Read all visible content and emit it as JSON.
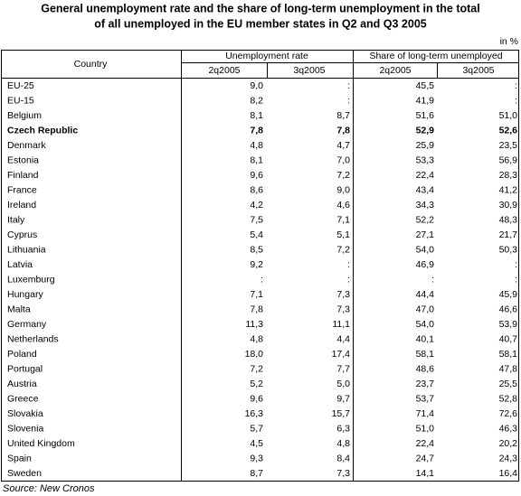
{
  "title": [
    "General unemployment rate and the share of long-term unemployment in the total",
    "of all unemployed in the EU member states in Q2 and Q3 2005"
  ],
  "unit": "in %",
  "table": {
    "header": {
      "country": "Country",
      "groups": [
        "Unemployment rate",
        "Share of long-term unemployed"
      ],
      "periods": [
        "2q2005",
        "3q2005",
        "2q2005",
        "3q2005"
      ]
    },
    "highlighted_row": 3,
    "rows": [
      [
        "EU-25",
        "9,0",
        ":",
        "45,5",
        ":"
      ],
      [
        "EU-15",
        "8,2",
        ":",
        "41,9",
        ":"
      ],
      [
        "Belgium",
        "8,1",
        "8,7",
        "51,6",
        "51,0"
      ],
      [
        "Czech Republic",
        "7,8",
        "7,8",
        "52,9",
        "52,6"
      ],
      [
        "Denmark",
        "4,8",
        "4,7",
        "25,9",
        "23,5"
      ],
      [
        "Estonia",
        "8,1",
        "7,0",
        "53,3",
        "56,9"
      ],
      [
        "Finland",
        "9,6",
        "7,2",
        "22,4",
        "28,3"
      ],
      [
        "France",
        "8,6",
        "9,0",
        "43,4",
        "41,2"
      ],
      [
        "Ireland",
        "4,2",
        "4,6",
        "34,3",
        "30,9"
      ],
      [
        "Italy",
        "7,5",
        "7,1",
        "52,2",
        "48,3"
      ],
      [
        "Cyprus",
        "5,4",
        "5,1",
        "27,1",
        "21,7"
      ],
      [
        "Lithuania",
        "8,5",
        "7,2",
        "54,0",
        "50,3"
      ],
      [
        "Latvia",
        "9,2",
        ":",
        "46,9",
        ":"
      ],
      [
        "Luxemburg",
        ":",
        ":",
        ":",
        ":"
      ],
      [
        "Hungary",
        "7,1",
        "7,3",
        "44,4",
        "45,9"
      ],
      [
        "Malta",
        "7,8",
        "7,3",
        "47,0",
        "46,6"
      ],
      [
        "Germany",
        "11,3",
        "11,1",
        "54,0",
        "53,9"
      ],
      [
        "Netherlands",
        "4,8",
        "4,4",
        "40,1",
        "40,7"
      ],
      [
        "Poland",
        "18,0",
        "17,4",
        "58,1",
        "58,1"
      ],
      [
        "Portugal",
        "7,2",
        "7,7",
        "48,6",
        "47,8"
      ],
      [
        "Austria",
        "5,2",
        "5,0",
        "23,7",
        "25,5"
      ],
      [
        "Greece",
        "9,6",
        "9,7",
        "53,7",
        "52,8"
      ],
      [
        "Slovakia",
        "16,3",
        "15,7",
        "71,4",
        "72,6"
      ],
      [
        "Slovenia",
        "5,7",
        "6,3",
        "51,0",
        "46,3"
      ],
      [
        "United Kingdom",
        "4,5",
        "4,8",
        "22,4",
        "20,2"
      ],
      [
        "Spain",
        "9,3",
        "8,4",
        "24,7",
        "24,3"
      ],
      [
        "Sweden",
        "8,7",
        "7,3",
        "14,1",
        "16,4"
      ]
    ]
  },
  "source": "Source: New Cronos"
}
